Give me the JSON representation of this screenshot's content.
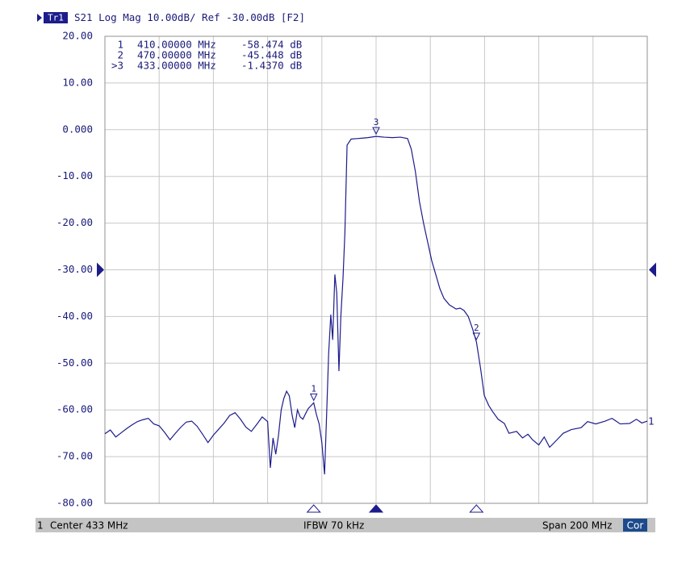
{
  "chart_data": {
    "type": "line",
    "title": "S21 Log Mag 10.00dB/ Ref -30.00dB [F2]",
    "trace_badge": "Tr1",
    "color": "#1c1c8c",
    "grid": true,
    "xlim": [
      333,
      533
    ],
    "xticks": [
      333,
      353,
      373,
      393,
      413,
      433,
      453,
      473,
      493,
      513,
      533
    ],
    "ylim": [
      -80,
      20
    ],
    "yticks": [
      {
        "value": 20,
        "label": "20.00"
      },
      {
        "value": 10,
        "label": "10.00"
      },
      {
        "value": 0,
        "label": "0.000"
      },
      {
        "value": -10,
        "label": "-10.00"
      },
      {
        "value": -20,
        "label": "-20.00"
      },
      {
        "value": -30,
        "label": "-30.00"
      },
      {
        "value": -40,
        "label": "-40.00"
      },
      {
        "value": -50,
        "label": "-50.00"
      },
      {
        "value": -60,
        "label": "-60.00"
      },
      {
        "value": -70,
        "label": "-70.00"
      },
      {
        "value": -80,
        "label": "-80.00"
      }
    ],
    "ref_level": -30,
    "trace_label": "1",
    "x": [
      333,
      335,
      337,
      339,
      341,
      343,
      345,
      347,
      349,
      351,
      353,
      355,
      357,
      359,
      361,
      363,
      365,
      367,
      369,
      371,
      373,
      375,
      377,
      379,
      381,
      383,
      385,
      387,
      389,
      391,
      393,
      394,
      395,
      396,
      397,
      398,
      399,
      400,
      401,
      402,
      403,
      404,
      405,
      406,
      407,
      408,
      410,
      411,
      412,
      413,
      414,
      414.8,
      415.5,
      416.3,
      417,
      417.8,
      418.5,
      419.3,
      420,
      420.8,
      421.5,
      422.3,
      423.8,
      426,
      428,
      430,
      433,
      436,
      439,
      442,
      444.6,
      446,
      447.5,
      449,
      450.5,
      452,
      453.5,
      455,
      456.5,
      458,
      460,
      462.5,
      464,
      465.4,
      467,
      468.5,
      470,
      471.5,
      472.9,
      474.5,
      475.9,
      478,
      480.3,
      482,
      484.8,
      487,
      489,
      490.7,
      493,
      495,
      497,
      499.7,
      502,
      505,
      508.6,
      511,
      514,
      517.5,
      520,
      523,
      526.5,
      529,
      531,
      533
    ],
    "values": [
      -65.1,
      -64.3,
      -65.8,
      -64.9,
      -64.0,
      -63.2,
      -62.5,
      -62.1,
      -61.8,
      -63.0,
      -63.4,
      -64.8,
      -66.4,
      -65.0,
      -63.7,
      -62.6,
      -62.4,
      -63.5,
      -65.2,
      -67.0,
      -65.4,
      -64.1,
      -62.8,
      -61.2,
      -60.6,
      -62.0,
      -63.7,
      -64.6,
      -63.1,
      -61.5,
      -62.5,
      -72.4,
      -66,
      -69.5,
      -65.5,
      -60,
      -57.5,
      -56,
      -57,
      -61,
      -63.8,
      -60,
      -61.5,
      -62,
      -60.8,
      -59.7,
      -58.474,
      -61,
      -63,
      -67,
      -73.8,
      -60.3,
      -48,
      -39.6,
      -45,
      -31,
      -35,
      -51.7,
      -40,
      -31.8,
      -22,
      -3.3,
      -2.0,
      -1.9,
      -1.8,
      -1.7,
      -1.437,
      -1.6,
      -1.7,
      -1.6,
      -1.9,
      -4.2,
      -9,
      -15.4,
      -20,
      -24,
      -28,
      -31,
      -34,
      -36.1,
      -37.5,
      -38.4,
      -38.2,
      -38.7,
      -40,
      -42.5,
      -45.448,
      -51,
      -56.9,
      -59,
      -60.3,
      -62,
      -62.9,
      -65,
      -64.6,
      -66,
      -65.2,
      -66.4,
      -67.5,
      -65.8,
      -68,
      -66.4,
      -65,
      -64.2,
      -63.8,
      -62.5,
      -63,
      -62.4,
      -61.8,
      -63,
      -62.9,
      -62,
      -62.8,
      -62.4
    ],
    "markers": [
      {
        "name": "1",
        "row_label": "1",
        "x": 410,
        "x_label": "410.00000 MHz",
        "y": -58.474,
        "y_label": "-58.474 dB",
        "active": false
      },
      {
        "name": "2",
        "row_label": "2",
        "x": 470,
        "x_label": "470.00000 MHz",
        "y": -45.448,
        "y_label": "-45.448 dB",
        "active": false
      },
      {
        "name": "3",
        "row_label": ">3",
        "x": 433,
        "x_label": "433.00000 MHz",
        "y": -1.437,
        "y_label": "-1.4370 dB",
        "active": true
      }
    ],
    "status_bar": {
      "channel": "1",
      "center": "Center 433 MHz",
      "ifbw": "IFBW 70 kHz",
      "span": "Span 200 MHz",
      "correction": "Cor"
    }
  }
}
